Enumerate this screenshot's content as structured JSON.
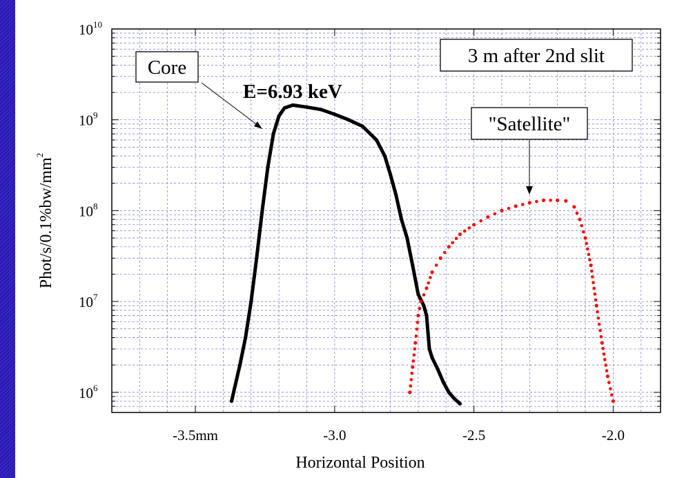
{
  "chart_data": {
    "type": "scatter",
    "title": "",
    "xlabel": "Horizontal Position",
    "ylabel": "Phot/s/0.1%bw/mm",
    "ylabel_superscript": "2",
    "y_scale": "log",
    "xlim": [
      -3.8,
      -1.83
    ],
    "ylim": [
      600000,
      10000000000
    ],
    "grid": true,
    "x_ticks": [
      {
        "value": -3.5,
        "label": "-3.5mm"
      },
      {
        "value": -3.0,
        "label": "-3.0"
      },
      {
        "value": -2.5,
        "label": "-2.5"
      },
      {
        "value": -2.0,
        "label": "-2.0"
      }
    ],
    "y_ticks": [
      {
        "value": 1000000,
        "base": "10",
        "exp": "6"
      },
      {
        "value": 10000000,
        "base": "10",
        "exp": "7"
      },
      {
        "value": 100000000,
        "base": "10",
        "exp": "8"
      },
      {
        "value": 1000000000,
        "base": "10",
        "exp": "9"
      },
      {
        "value": 10000000000,
        "base": "10",
        "exp": "10"
      }
    ],
    "annotations": {
      "core_label": "Core",
      "energy_label": "E=6.93 keV",
      "location_label": "3 m after 2nd slit",
      "satellite_label": "\"Satellite\""
    },
    "series": [
      {
        "color": "#000000",
        "style": "thick-line",
        "points": [
          [
            -3.37,
            800000
          ],
          [
            -3.34,
            2000000
          ],
          [
            -3.32,
            4000000
          ],
          [
            -3.3,
            10000000
          ],
          [
            -3.28,
            30000000
          ],
          [
            -3.26,
            100000000
          ],
          [
            -3.24,
            300000000
          ],
          [
            -3.22,
            700000000
          ],
          [
            -3.2,
            1100000000
          ],
          [
            -3.18,
            1350000000
          ],
          [
            -3.15,
            1450000000
          ],
          [
            -3.1,
            1380000000
          ],
          [
            -3.05,
            1300000000
          ],
          [
            -3.0,
            1150000000
          ],
          [
            -2.95,
            1000000000
          ],
          [
            -2.9,
            850000000
          ],
          [
            -2.85,
            600000000
          ],
          [
            -2.82,
            400000000
          ],
          [
            -2.8,
            250000000
          ],
          [
            -2.78,
            150000000
          ],
          [
            -2.76,
            80000000
          ],
          [
            -2.74,
            50000000
          ],
          [
            -2.72,
            25000000
          ],
          [
            -2.7,
            12000000
          ],
          [
            -2.68,
            9000000
          ],
          [
            -2.67,
            7000000
          ],
          [
            -2.66,
            3000000
          ],
          [
            -2.65,
            2400000
          ],
          [
            -2.63,
            1800000
          ],
          [
            -2.61,
            1300000
          ],
          [
            -2.59,
            1000000
          ],
          [
            -2.57,
            850000
          ],
          [
            -2.55,
            750000
          ]
        ]
      },
      {
        "color": "#ff0000",
        "style": "dotted",
        "points": [
          [
            -2.73,
            1000000
          ],
          [
            -2.72,
            1900000
          ],
          [
            -2.71,
            3500000
          ],
          [
            -2.7,
            7000000
          ],
          [
            -2.69,
            10000000
          ],
          [
            -2.67,
            14000000
          ],
          [
            -2.65,
            21000000
          ],
          [
            -2.62,
            30000000
          ],
          [
            -2.59,
            40000000
          ],
          [
            -2.55,
            55000000
          ],
          [
            -2.5,
            70000000
          ],
          [
            -2.45,
            85000000
          ],
          [
            -2.4,
            100000000
          ],
          [
            -2.35,
            112000000
          ],
          [
            -2.3,
            122000000
          ],
          [
            -2.25,
            130000000
          ],
          [
            -2.2,
            130000000
          ],
          [
            -2.17,
            128000000
          ],
          [
            -2.14,
            110000000
          ],
          [
            -2.12,
            80000000
          ],
          [
            -2.1,
            50000000
          ],
          [
            -2.08,
            25000000
          ],
          [
            -2.06,
            9000000
          ],
          [
            -2.04,
            3500000
          ],
          [
            -2.02,
            1500000
          ],
          [
            -2.0,
            800000
          ]
        ]
      }
    ]
  }
}
